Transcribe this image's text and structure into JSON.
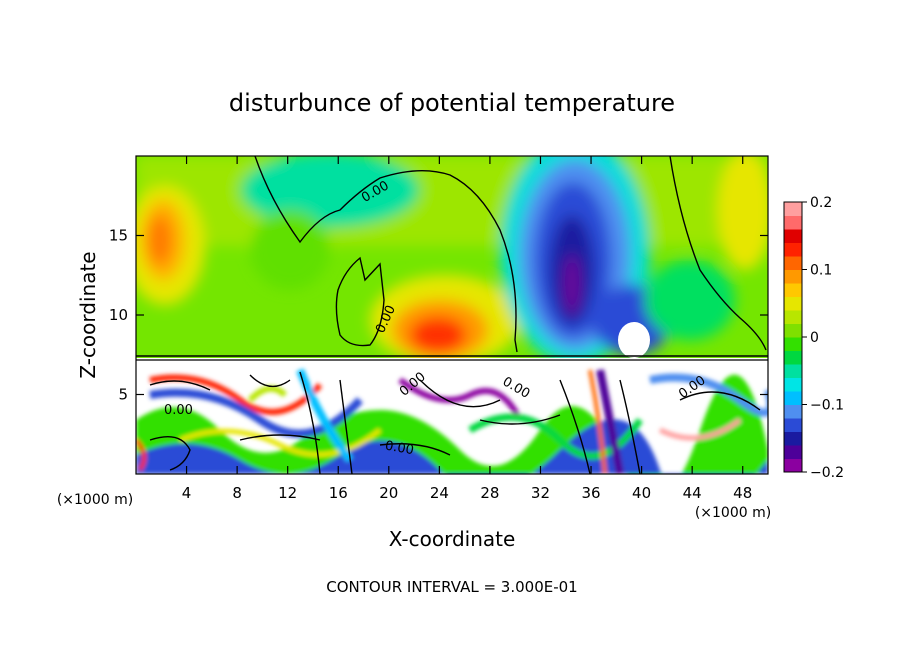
{
  "chart_data": {
    "type": "heatmap",
    "title": "disturbunce of potential temperature",
    "xlabel": "X-coordinate",
    "ylabel": "Z-coordinate",
    "x_unit_left": "(×1000 m)",
    "x_unit_right": "(×1000 m)",
    "xlim": [
      0,
      50
    ],
    "ylim": [
      0,
      20
    ],
    "x_ticks": [
      "4",
      "8",
      "12",
      "16",
      "20",
      "24",
      "28",
      "32",
      "36",
      "40",
      "44",
      "48"
    ],
    "y_ticks": [
      "5",
      "10",
      "15"
    ],
    "contour_labels": [
      "0.00",
      "0.00",
      "0.00",
      "0.00",
      "0.00",
      "0.00",
      "0.00"
    ],
    "footer": "CONTOUR INTERVAL = 3.000E-01",
    "colorbar": {
      "min": -0.2,
      "max": 0.2,
      "tick_labels": [
        "0.2",
        "0.1",
        "0",
        "−0.1",
        "−0.2"
      ],
      "colors": [
        "#8b00a0",
        "#4d0099",
        "#1a1aa0",
        "#2b4bd6",
        "#4f8ff0",
        "#00bfff",
        "#00e5e5",
        "#00e0a0",
        "#00d840",
        "#33e000",
        "#7fe000",
        "#b8e600",
        "#e6e600",
        "#ffc800",
        "#ff9900",
        "#ff6600",
        "#ff2200",
        "#e00000",
        "#ff6a6a",
        "#ff9f9f"
      ]
    }
  }
}
